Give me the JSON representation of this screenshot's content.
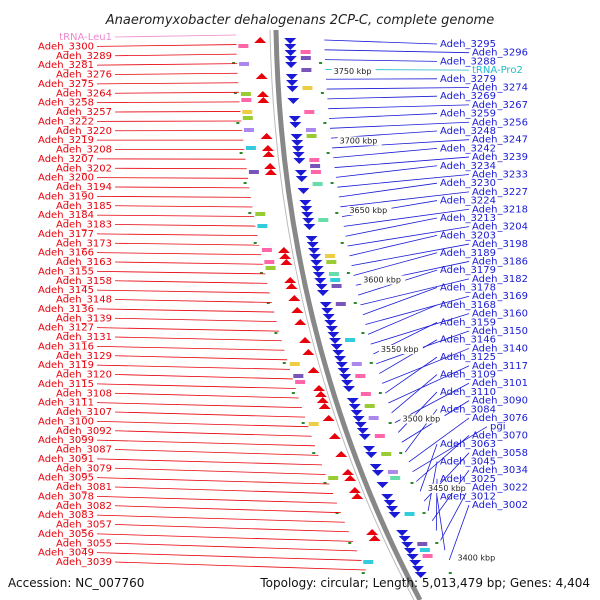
{
  "title": "Anaeromyxobacter dehalogenans 2CP-C, complete genome",
  "footer": {
    "accession": "Accession: NC_007760",
    "summary": "Topology: circular; Length: 5,013,479 bp; Genes: 4,404"
  },
  "colors": {
    "left_labels": "#e8000b",
    "right_labels": "#1a1ad6",
    "trna_left": "#ee88cc",
    "trna_right": "#22bbcc",
    "backbone": "#888888",
    "tick": "#2a8a2a"
  },
  "kbp_labels": [
    "3750 kbp",
    "3700 kbp",
    "3650 kbp",
    "3600 kbp",
    "3550 kbp",
    "3500 kbp",
    "3450 kbp",
    "3400 kbp"
  ],
  "left_labels": [
    "tRNA-Leu1",
    "Adeh_3300",
    "Adeh_3289",
    "Adeh_3281",
    "Adeh_3276",
    "Adeh_3275",
    "Adeh_3264",
    "Adeh_3258",
    "Adeh_3257",
    "Adeh_3222",
    "Adeh_3220",
    "Adeh_3219",
    "Adeh_3208",
    "Adeh_3207",
    "Adeh_3202",
    "Adeh_3200",
    "Adeh_3194",
    "Adeh_3190",
    "Adeh_3185",
    "Adeh_3184",
    "Adeh_3183",
    "Adeh_3177",
    "Adeh_3173",
    "Adeh_3166",
    "Adeh_3163",
    "Adeh_3155",
    "Adeh_3158",
    "Adeh_3145",
    "Adeh_3148",
    "Adeh_3136",
    "Adeh_3139",
    "Adeh_3127",
    "Adeh_3131",
    "Adeh_3116",
    "Adeh_3129",
    "Adeh_3119",
    "Adeh_3120",
    "Adeh_3115",
    "Adeh_3108",
    "Adeh_3111",
    "Adeh_3107",
    "Adeh_3100",
    "Adeh_3092",
    "Adeh_3099",
    "Adeh_3087",
    "Adeh_3091",
    "Adeh_3079",
    "Adeh_3095",
    "Adeh_3081",
    "Adeh_3078",
    "Adeh_3082",
    "Adeh_3083",
    "Adeh_3057",
    "Adeh_3056",
    "Adeh_3055",
    "Adeh_3049",
    "Adeh_3039"
  ],
  "right_labels": [
    "Adeh_3295",
    "Adeh_3296",
    "Adeh_3288",
    "tRNA-Pro2",
    "Adeh_3279",
    "Adeh_3274",
    "Adeh_3269",
    "Adeh_3267",
    "Adeh_3259",
    "Adeh_3256",
    "Adeh_3248",
    "Adeh_3247",
    "Adeh_3242",
    "Adeh_3239",
    "Adeh_3234",
    "Adeh_3233",
    "Adeh_3230",
    "Adeh_3227",
    "Adeh_3224",
    "Adeh_3218",
    "Adeh_3213",
    "Adeh_3204",
    "Adeh_3203",
    "Adeh_3198",
    "Adeh_3189",
    "Adeh_3186",
    "Adeh_3179",
    "Adeh_3182",
    "Adeh_3178",
    "Adeh_3169",
    "Adeh_3168",
    "Adeh_3160",
    "Adeh_3159",
    "Adeh_3150",
    "Adeh_3146",
    "Adeh_3140",
    "Adeh_3125",
    "Adeh_3117",
    "Adeh_3109",
    "Adeh_3101",
    "Adeh_3110",
    "Adeh_3090",
    "Adeh_3084",
    "Adeh_3076",
    "pgi",
    "Adeh_3070",
    "Adeh_3063",
    "Adeh_3058",
    "Adeh_3045",
    "Adeh_3034",
    "Adeh_3025",
    "Adeh_3022",
    "Adeh_3012",
    "Adeh_3002"
  ]
}
